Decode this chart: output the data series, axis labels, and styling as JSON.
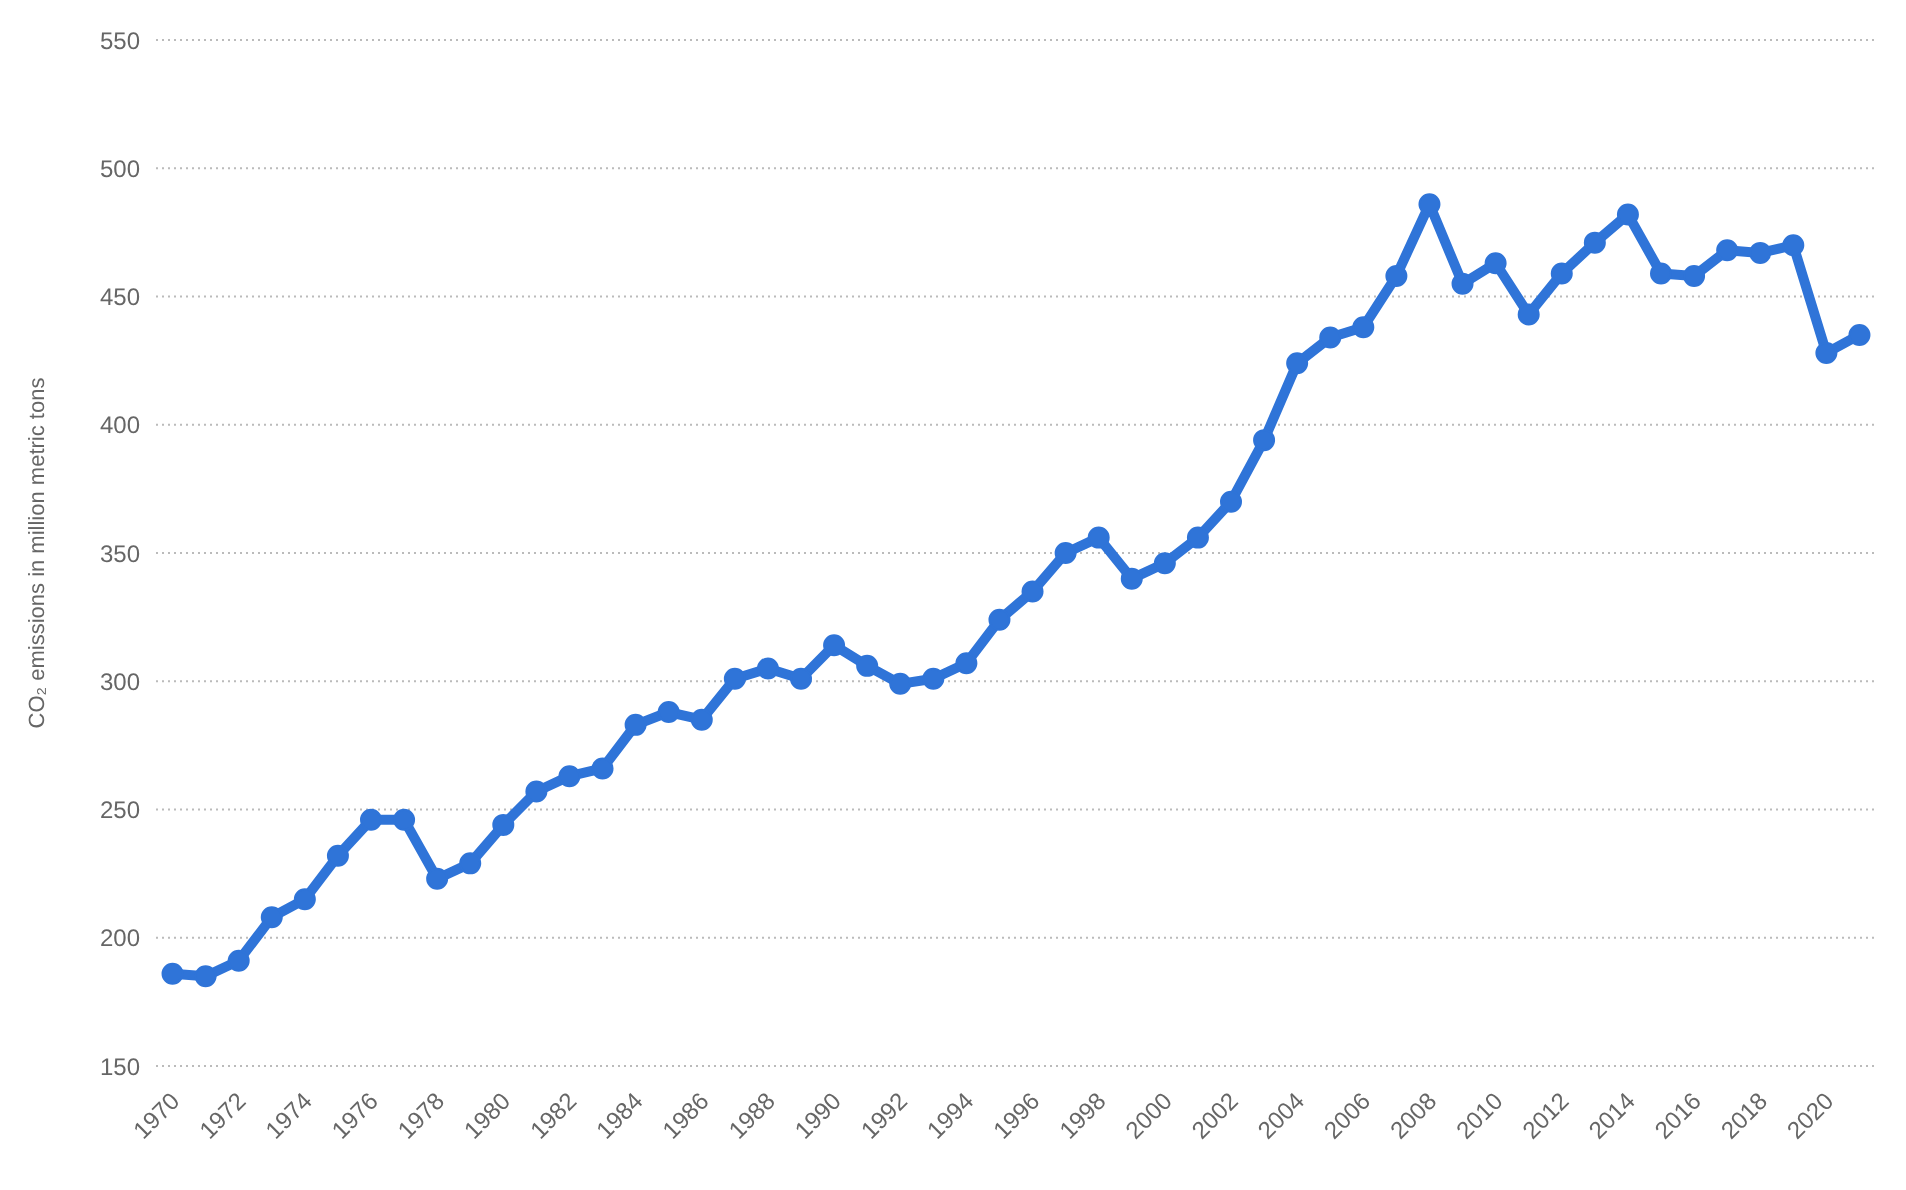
{
  "chart_data": {
    "type": "line",
    "ylabel": "CO₂ emissions in million metric tons",
    "x": [
      1970,
      1971,
      1972,
      1973,
      1974,
      1975,
      1976,
      1977,
      1978,
      1979,
      1980,
      1981,
      1982,
      1983,
      1984,
      1985,
      1986,
      1987,
      1988,
      1989,
      1990,
      1991,
      1992,
      1993,
      1994,
      1995,
      1996,
      1997,
      1998,
      1999,
      2000,
      2001,
      2002,
      2003,
      2004,
      2005,
      2006,
      2007,
      2008,
      2009,
      2010,
      2011,
      2012,
      2013,
      2014,
      2015,
      2016,
      2017,
      2018,
      2019,
      2020,
      2021
    ],
    "series": [
      {
        "color": "#2f74d8",
        "values": [
          186,
          185,
          191,
          208,
          215,
          232,
          246,
          246,
          223,
          229,
          244,
          257,
          263,
          266,
          283,
          288,
          285,
          301,
          305,
          301,
          314,
          306,
          299,
          301,
          307,
          324,
          335,
          350,
          356,
          340,
          346,
          356,
          370,
          394,
          424,
          434,
          438,
          458,
          486,
          455,
          463,
          443,
          459,
          471,
          482,
          459,
          458,
          468,
          467,
          470,
          428,
          435
        ]
      }
    ],
    "xlim": [
      1969.5,
      2021.5
    ],
    "xticks": [
      1970,
      1972,
      1974,
      1976,
      1978,
      1980,
      1982,
      1984,
      1986,
      1988,
      1990,
      1992,
      1994,
      1996,
      1998,
      2000,
      2002,
      2004,
      2006,
      2008,
      2010,
      2012,
      2014,
      2016,
      2018,
      2020
    ],
    "ylim": [
      150,
      550
    ],
    "yticks": [
      150,
      200,
      250,
      300,
      350,
      400,
      450,
      500,
      550
    ],
    "grid": "y",
    "marker": "circle",
    "line_style": "solid"
  }
}
